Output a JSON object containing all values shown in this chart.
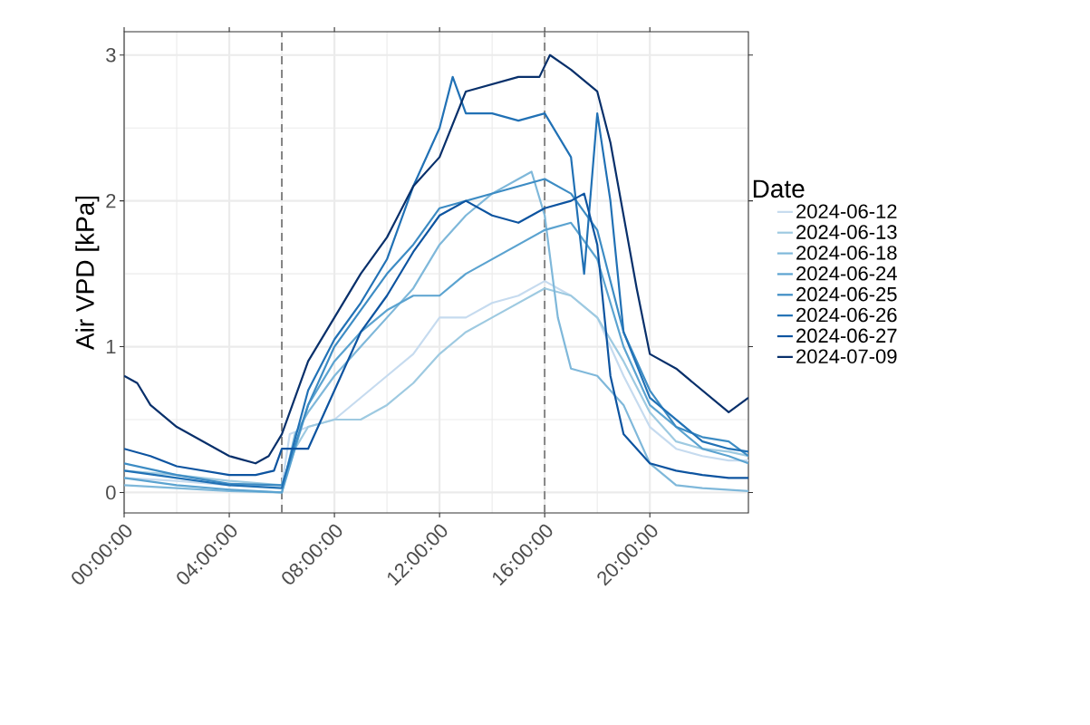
{
  "chart_data": {
    "type": "line",
    "ylabel": "Air VPD [kPa]",
    "legend_title": "Date",
    "legend": "right",
    "grid": true,
    "line_style": "solid",
    "marker": "none",
    "xlim": [
      0,
      23.75
    ],
    "ylim": [
      -0.14,
      3.16
    ],
    "xticks": [
      {
        "value": 0,
        "label": "00:00:00"
      },
      {
        "value": 4,
        "label": "04:00:00"
      },
      {
        "value": 8,
        "label": "08:00:00"
      },
      {
        "value": 12,
        "label": "12:00:00"
      },
      {
        "value": 16,
        "label": "16:00:00"
      },
      {
        "value": 20,
        "label": "20:00:00"
      }
    ],
    "yticks": [
      0,
      1,
      2,
      3
    ],
    "ref_lines": [
      {
        "axis": "x",
        "value": 6,
        "color": "#808080",
        "line_style": "dashed"
      },
      {
        "axis": "x",
        "value": 16,
        "color": "#808080",
        "line_style": "dashed"
      }
    ],
    "series": [
      {
        "name": "2024-06-12",
        "color": "#c6dbef",
        "x": [
          0,
          2,
          4,
          6,
          6.3,
          7,
          8,
          9,
          10,
          11,
          12,
          13,
          14,
          15,
          16,
          17,
          18,
          19,
          20,
          21,
          22,
          23,
          23.75
        ],
        "values": [
          0.1,
          0.08,
          0.05,
          0.05,
          0.4,
          0.45,
          0.5,
          0.65,
          0.8,
          0.95,
          1.2,
          1.2,
          1.3,
          1.35,
          1.45,
          1.35,
          1.2,
          0.8,
          0.45,
          0.3,
          0.25,
          0.22,
          0.22
        ]
      },
      {
        "name": "2024-06-13",
        "color": "#9ecae1",
        "x": [
          0,
          2,
          4,
          6,
          6.5,
          7,
          8,
          9,
          10,
          11,
          12,
          13,
          14,
          15,
          16,
          17,
          18,
          19,
          20,
          21,
          22,
          23,
          23.75
        ],
        "values": [
          0.15,
          0.12,
          0.08,
          0.05,
          0.3,
          0.45,
          0.5,
          0.5,
          0.6,
          0.75,
          0.95,
          1.1,
          1.2,
          1.3,
          1.4,
          1.35,
          1.2,
          0.9,
          0.55,
          0.35,
          0.3,
          0.28,
          0.25
        ]
      },
      {
        "name": "2024-06-18",
        "color": "#7fb8da",
        "x": [
          0,
          2,
          4,
          6,
          6.5,
          7,
          8,
          9,
          10,
          11,
          12,
          13,
          14,
          15,
          15.5,
          16,
          16.5,
          17,
          18,
          19,
          20,
          21,
          22,
          23.75
        ],
        "values": [
          0.05,
          0.03,
          0.01,
          0,
          0.4,
          0.55,
          0.8,
          1.0,
          1.2,
          1.4,
          1.7,
          1.9,
          2.05,
          2.15,
          2.2,
          1.9,
          1.2,
          0.85,
          0.8,
          0.6,
          0.2,
          0.05,
          0.03,
          0.01
        ]
      },
      {
        "name": "2024-06-24",
        "color": "#5ba3d0",
        "x": [
          0,
          2,
          4,
          6,
          7,
          8,
          9,
          10,
          11,
          12,
          13,
          14,
          15,
          16,
          17,
          18,
          19,
          20,
          21,
          22,
          23,
          23.75
        ],
        "values": [
          0.1,
          0.05,
          0.02,
          0,
          0.6,
          0.9,
          1.1,
          1.25,
          1.35,
          1.35,
          1.5,
          1.6,
          1.7,
          1.8,
          1.85,
          1.6,
          1.0,
          0.6,
          0.45,
          0.3,
          0.25,
          0.2
        ]
      },
      {
        "name": "2024-06-25",
        "color": "#3d8cc4",
        "x": [
          0,
          2,
          4,
          6,
          7,
          8,
          9,
          10,
          11,
          12,
          13,
          14,
          15,
          16,
          17,
          18,
          19,
          20,
          21,
          22,
          23,
          23.75
        ],
        "values": [
          0.2,
          0.12,
          0.06,
          0.05,
          0.6,
          1.0,
          1.25,
          1.5,
          1.7,
          1.95,
          2.0,
          2.05,
          2.1,
          2.15,
          2.05,
          1.8,
          1.1,
          0.7,
          0.45,
          0.38,
          0.35,
          0.25
        ]
      },
      {
        "name": "2024-06-26",
        "color": "#2171b5",
        "x": [
          0,
          2,
          4,
          6,
          7,
          8,
          9,
          10,
          11,
          12,
          12.5,
          13,
          14,
          15,
          16,
          17,
          17.5,
          18,
          18.5,
          19,
          20,
          21,
          22,
          23,
          23.75
        ],
        "values": [
          0.15,
          0.1,
          0.05,
          0.03,
          0.7,
          1.05,
          1.3,
          1.6,
          2.1,
          2.5,
          2.85,
          2.6,
          2.6,
          2.55,
          2.6,
          2.3,
          1.5,
          2.6,
          2.0,
          1.1,
          0.65,
          0.5,
          0.35,
          0.3,
          0.28
        ]
      },
      {
        "name": "2024-06-27",
        "color": "#0d54a0",
        "x": [
          0,
          1,
          2,
          3,
          4,
          5,
          5.7,
          6,
          7,
          8,
          9,
          10,
          11,
          12,
          13,
          14,
          15,
          16,
          17,
          17.5,
          18,
          18.5,
          19,
          20,
          21,
          22,
          23,
          23.75
        ],
        "values": [
          0.3,
          0.25,
          0.18,
          0.15,
          0.12,
          0.12,
          0.15,
          0.3,
          0.3,
          0.7,
          1.1,
          1.35,
          1.65,
          1.9,
          2.0,
          1.9,
          1.85,
          1.95,
          2.0,
          2.05,
          1.7,
          0.8,
          0.4,
          0.2,
          0.15,
          0.12,
          0.1,
          0.1
        ]
      },
      {
        "name": "2024-07-09",
        "color": "#08306b",
        "x": [
          0,
          0.5,
          1,
          2,
          3,
          4,
          5,
          5.5,
          6,
          7,
          8,
          9,
          10,
          11,
          12,
          13,
          14,
          15,
          15.8,
          16.2,
          17,
          18,
          18.5,
          19,
          19.5,
          20,
          21,
          22,
          23,
          23.75
        ],
        "values": [
          0.8,
          0.75,
          0.6,
          0.45,
          0.35,
          0.25,
          0.2,
          0.25,
          0.4,
          0.9,
          1.2,
          1.5,
          1.75,
          2.1,
          2.3,
          2.75,
          2.8,
          2.85,
          2.85,
          3.0,
          2.9,
          2.75,
          2.4,
          1.9,
          1.4,
          0.95,
          0.85,
          0.7,
          0.55,
          0.65
        ]
      }
    ]
  }
}
